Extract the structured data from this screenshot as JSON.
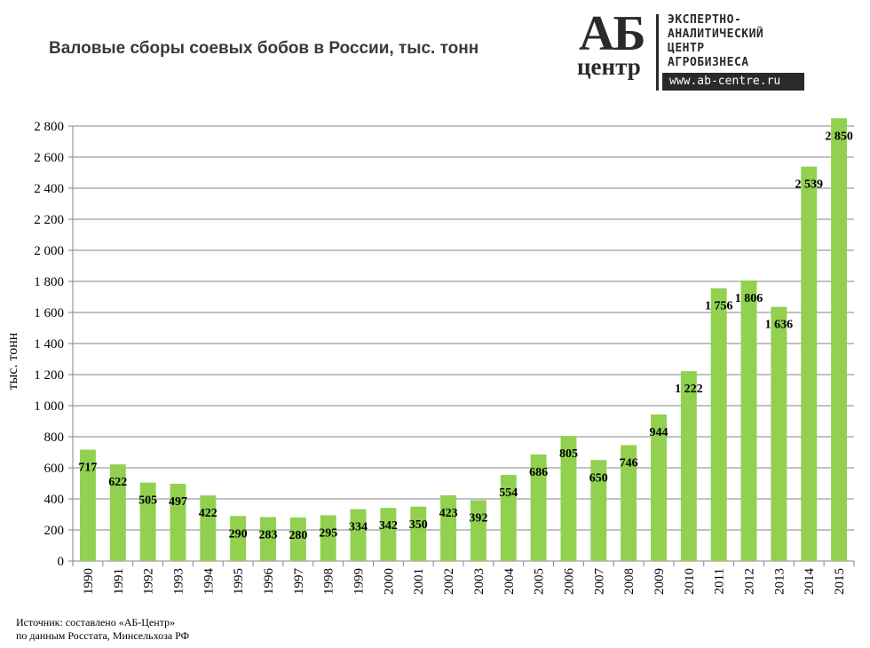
{
  "logo": {
    "letters": "АБ",
    "word": "центр",
    "lines": [
      "ЭКСПЕРТНО-",
      "АНАЛИТИЧЕСКИЙ",
      "ЦЕНТР",
      "АГРОБИЗНЕСА"
    ],
    "site": "www.ab-centre.ru"
  },
  "source": {
    "line1": "Источник:  составлено «АБ-Центр»",
    "line2": "по данным Росстата,  Минсельхоза  РФ"
  },
  "colors": {
    "bar": "#92d050",
    "grid": "#868686",
    "text": "#000000"
  },
  "chart_data": {
    "type": "bar",
    "title": "Валовые сборы соевых бобов в России, тыс. тонн",
    "ylabel": "тыс. тонн",
    "xlabel": "",
    "ylim": [
      0,
      2800
    ],
    "yticks": [
      0,
      200,
      400,
      600,
      800,
      1000,
      1200,
      1400,
      1600,
      1800,
      2000,
      2200,
      2400,
      2600,
      2800
    ],
    "ytick_labels": [
      "0",
      "200",
      "400",
      "600",
      "800",
      "1 000",
      "1 200",
      "1 400",
      "1 600",
      "1 800",
      "2 000",
      "2 200",
      "2 400",
      "2 600",
      "2 800"
    ],
    "grid": true,
    "legend": "none",
    "categories": [
      "1990",
      "1991",
      "1992",
      "1993",
      "1994",
      "1995",
      "1996",
      "1997",
      "1998",
      "1999",
      "2000",
      "2001",
      "2002",
      "2003",
      "2004",
      "2005",
      "2006",
      "2007",
      "2008",
      "2009",
      "2010",
      "2011",
      "2012",
      "2013",
      "2014",
      "2015"
    ],
    "values": [
      717,
      622,
      505,
      497,
      422,
      290,
      283,
      280,
      295,
      334,
      342,
      350,
      423,
      392,
      554,
      686,
      805,
      650,
      746,
      944,
      1222,
      1756,
      1806,
      1636,
      2539,
      2850
    ],
    "data_labels": [
      "717",
      "622",
      "505",
      "497",
      "422",
      "290",
      "283",
      "280",
      "295",
      "334",
      "342",
      "350",
      "423",
      "392",
      "554",
      "686",
      "805",
      "650",
      "746",
      "944",
      "1 222",
      "1 756",
      "1 806",
      "1 636",
      "2 539",
      "2 850"
    ]
  }
}
